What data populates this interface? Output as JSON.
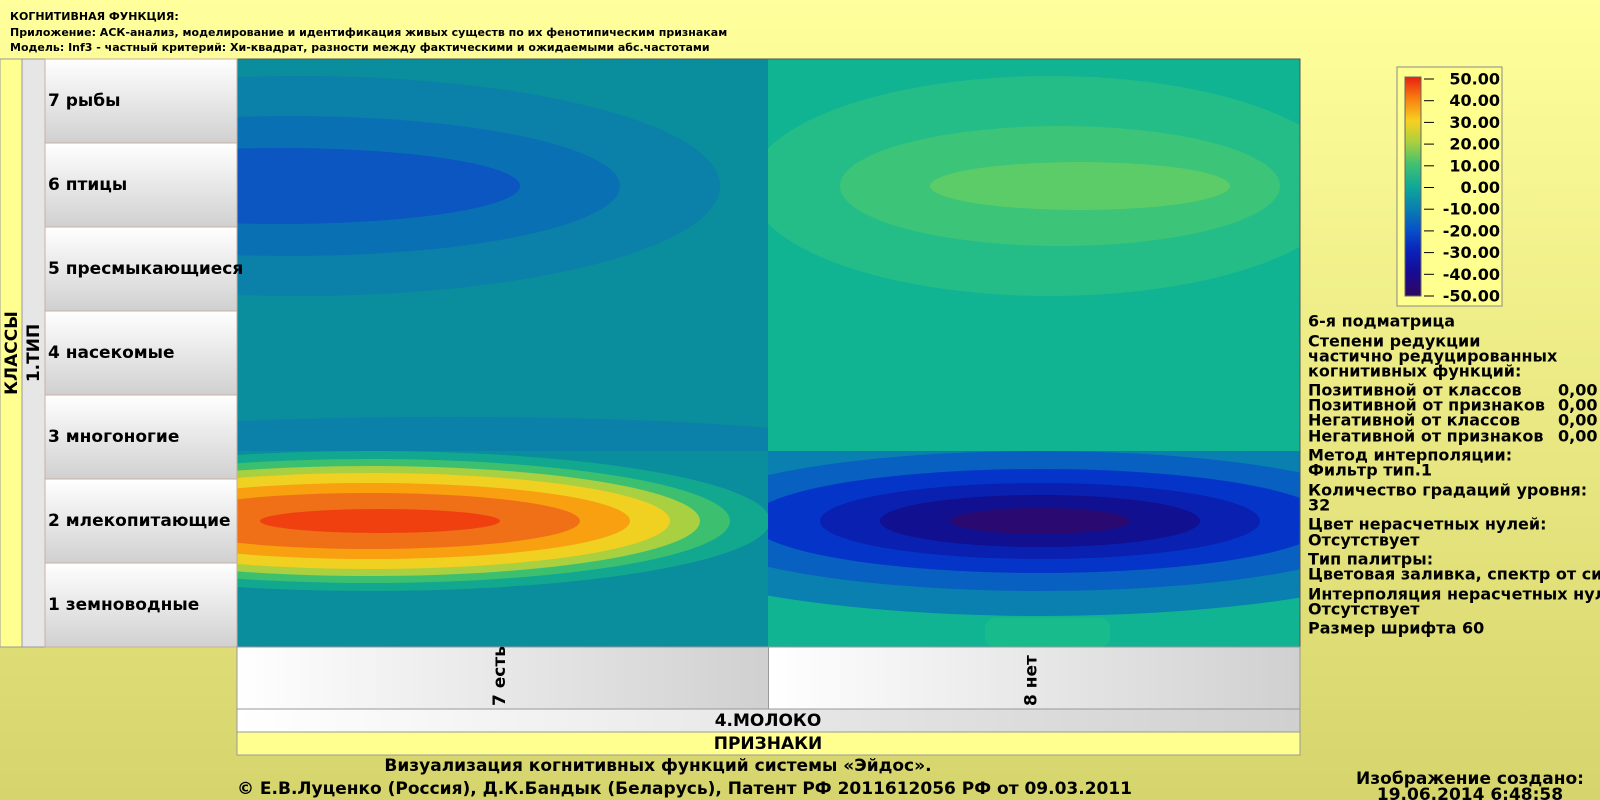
{
  "header": {
    "lines": [
      "КОГНИТИВНАЯ ФУНКЦИЯ:",
      "Приложение: АСК-анализ, моделирование и идентификация живых существ по их фенотипическим признакам",
      "Модель: Inf3 - частный критерий: Хи-квадрат, разности между фактическими и ожидаемыми абс.частотами"
    ]
  },
  "rows_axis": {
    "title": "КЛАССЫ",
    "group": "1.ТИП",
    "rows": [
      "7 рыбы",
      "6 птицы",
      "5 пресмыкающиеся",
      "4 насекомые",
      "3 многоногие",
      "2 млекопитающие",
      "1 земноводные"
    ]
  },
  "columns_axis": {
    "columns": [
      "7 есть",
      "8 нет"
    ],
    "group": "4.МОЛОКО",
    "title": "ПРИЗНАКИ"
  },
  "legend": {
    "labels": [
      "50.00",
      "40.00",
      "30.00",
      "20.00",
      "10.00",
      "0.00",
      "-10.00",
      "-20.00",
      "-30.00",
      "-40.00",
      "-50.00"
    ]
  },
  "info": {
    "lines": [
      {
        "text": "6-я подматрица"
      },
      {
        "text": "Степени редукции"
      },
      {
        "text": "частично редуцированных"
      },
      {
        "text": "когнитивных функций:"
      },
      {
        "text": "Позитивной от классов",
        "value": "0,00"
      },
      {
        "text": "Позитивной от признаков",
        "value": "0,00"
      },
      {
        "text": "Негативной от классов",
        "value": "0,00"
      },
      {
        "text": "Негативной от признаков",
        "value": "0,00"
      },
      {
        "text": "Метод интерполяции:"
      },
      {
        "text": "Фильтр тип.1"
      },
      {
        "text": "Количество градаций уровня:"
      },
      {
        "text": "32"
      },
      {
        "text": "Цвет нерасчетных нулей:"
      },
      {
        "text": "Отсутствует"
      },
      {
        "text": "Тип палитры:"
      },
      {
        "text": "Цветовая заливка, спектр от си"
      },
      {
        "text": "Интерполяция нерасчетных нул"
      },
      {
        "text": "Отсутствует"
      },
      {
        "text": "Размер шрифта 60"
      }
    ]
  },
  "footer": {
    "lines": [
      "Визуализация когнитивных функций системы «Эйдос».",
      "© Е.В.Луценко (Россия), Д.К.Бандык (Беларусь), Патент РФ  2011612056 РФ от 09.03.2011"
    ]
  },
  "timestamp": {
    "lines": [
      "Изображение создано:",
      "19.06.2014   6:48:58"
    ]
  }
}
